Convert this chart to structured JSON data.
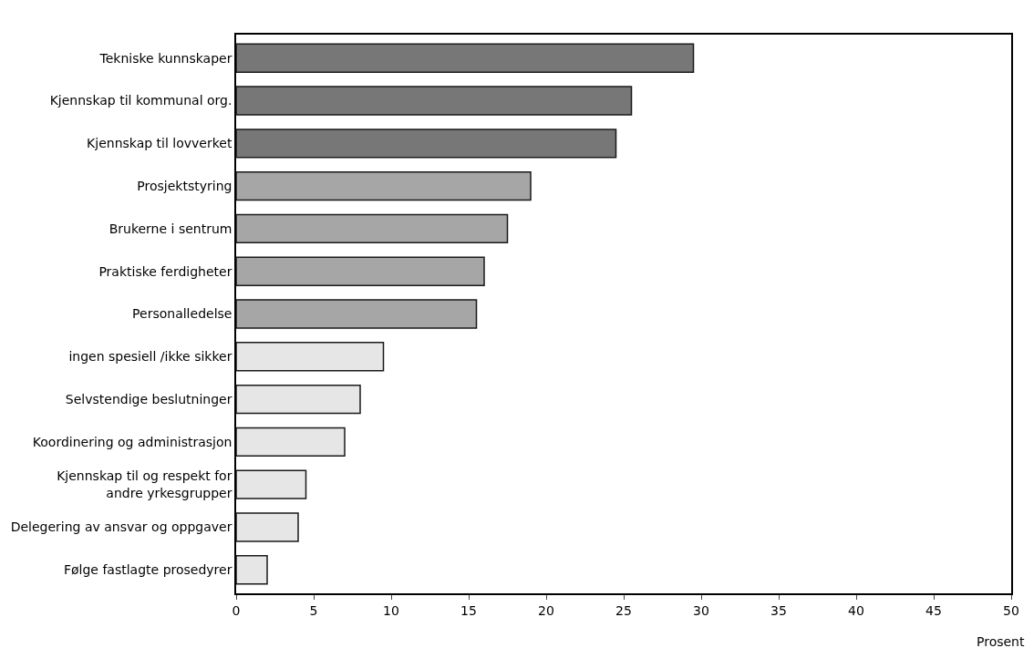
{
  "chart_data": {
    "type": "bar",
    "orientation": "horizontal",
    "xlabel": "Prosent",
    "categories": [
      "Tekniske kunnskaper",
      "Kjennskap til kommunal org.",
      "Kjennskap til lovverket",
      "Prosjektstyring",
      "Brukerne i sentrum",
      "Praktiske ferdigheter",
      "Personalledelse",
      "ingen spesiell /ikke sikker",
      "Selvstendige beslutninger",
      "Koordinering og administrasjon",
      "Kjennskap til og respekt for\nandre yrkesgrupper",
      "Delegering av ansvar og oppgaver",
      "Følge fastlagte prosedyrer"
    ],
    "values": [
      29.5,
      25.5,
      24.5,
      19,
      17.5,
      16,
      15.5,
      9.5,
      8,
      7,
      4.5,
      4,
      2
    ],
    "colors": [
      "#777777",
      "#777777",
      "#777777",
      "#a6a6a6",
      "#a6a6a6",
      "#a6a6a6",
      "#a6a6a6",
      "#e6e6e6",
      "#e6e6e6",
      "#e6e6e6",
      "#e6e6e6",
      "#e6e6e6",
      "#e6e6e6"
    ],
    "xlim": [
      0,
      50
    ],
    "xticks": [
      0,
      5,
      10,
      15,
      20,
      25,
      30,
      35,
      40,
      45,
      50
    ]
  }
}
